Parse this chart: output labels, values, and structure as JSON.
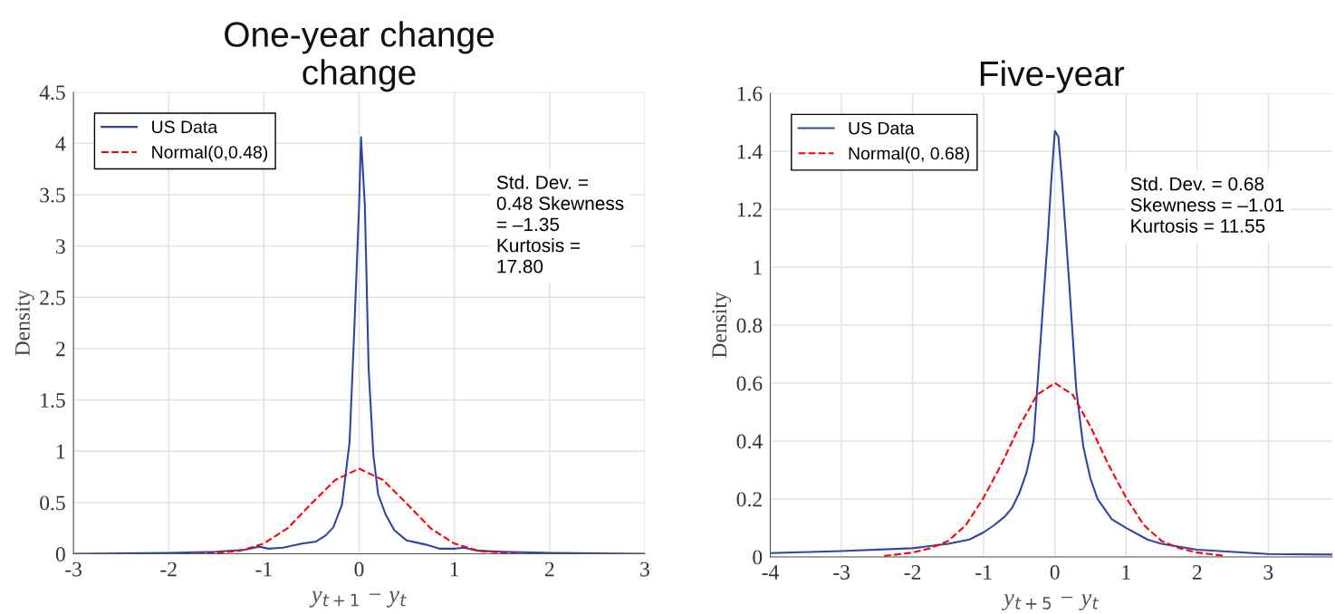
{
  "chart_data": [
    {
      "type": "line",
      "title": "One-year change\nchange",
      "xlabel": "y$_{t+1}$ − y$_{t}$",
      "ylabel": "Density",
      "xlim": [
        -3,
        3
      ],
      "xticks": [
        -3,
        -2,
        -1,
        0,
        1,
        2,
        3
      ],
      "ylim": [
        0,
        4.5
      ],
      "yticks": [
        0,
        0.5,
        1,
        1.5,
        2,
        2.5,
        3,
        3.5,
        4,
        4.5
      ],
      "grid": true,
      "legend": "top left",
      "marker": "none",
      "annotations": [
        "Std. Dev. =\n0.48 Skewness\n= –1.35\nKurtosis =\n17.80"
      ],
      "series": [
        {
          "name": "US Data",
          "color": "#2e45a6",
          "line_style": "solid",
          "x": [
            -3,
            -2,
            -1.5,
            -1.2,
            -1.05,
            -0.95,
            -0.8,
            -0.6,
            -0.45,
            -0.35,
            -0.27,
            -0.18,
            -0.1,
            -0.05,
            0,
            0.02,
            0.06,
            0.1,
            0.15,
            0.2,
            0.28,
            0.37,
            0.5,
            0.7,
            0.85,
            1.0,
            1.1,
            1.25,
            1.5,
            2,
            3
          ],
          "values": [
            0.0,
            0.01,
            0.02,
            0.04,
            0.07,
            0.05,
            0.06,
            0.1,
            0.12,
            0.18,
            0.26,
            0.48,
            1.09,
            2.2,
            3.4,
            4.06,
            3.4,
            1.8,
            0.96,
            0.58,
            0.38,
            0.23,
            0.13,
            0.09,
            0.05,
            0.05,
            0.06,
            0.03,
            0.02,
            0.01,
            0.0
          ]
        },
        {
          "name": "Normal(0,0.48)",
          "color": "#ff0000",
          "line_style": "dashed",
          "x": [
            -1.7,
            -1.5,
            -1.25,
            -1,
            -0.75,
            -0.5,
            -0.25,
            0,
            0.25,
            0.5,
            0.75,
            1,
            1.25,
            1.5,
            1.7
          ],
          "values": [
            0.0,
            0.01,
            0.03,
            0.1,
            0.25,
            0.49,
            0.72,
            0.83,
            0.72,
            0.49,
            0.25,
            0.1,
            0.03,
            0.01,
            0.0
          ]
        }
      ]
    },
    {
      "type": "line",
      "title": "Five-year",
      "xlabel": "y$_{t+5}$ − y$_{t}$",
      "ylabel": "Density",
      "xlim": [
        -4,
        3.9
      ],
      "xticks": [
        -4,
        -3,
        -2,
        -1,
        0,
        1,
        2,
        3
      ],
      "ylim": [
        0,
        1.6
      ],
      "yticks": [
        0,
        0.2,
        0.4,
        0.6,
        0.8,
        1,
        1.2,
        1.4,
        1.6
      ],
      "grid": true,
      "legend": "top left",
      "marker": "none",
      "annotations": [
        "Std. Dev. = 0.68\nSkewness = –1.01\nKurtosis = 11.55"
      ],
      "series": [
        {
          "name": "US Data",
          "color": "#2e45a6",
          "line_style": "solid",
          "x": [
            -4,
            -3,
            -2,
            -1.5,
            -1.2,
            -1,
            -0.85,
            -0.7,
            -0.6,
            -0.5,
            -0.4,
            -0.3,
            -0.2,
            -0.1,
            -0.05,
            0,
            0.05,
            0.1,
            0.2,
            0.3,
            0.4,
            0.5,
            0.6,
            0.8,
            1,
            1.3,
            1.5,
            2,
            3,
            3.9
          ],
          "values": [
            0.013,
            0.02,
            0.03,
            0.045,
            0.06,
            0.085,
            0.11,
            0.14,
            0.17,
            0.22,
            0.29,
            0.4,
            0.75,
            1.1,
            1.3,
            1.47,
            1.45,
            1.3,
            0.95,
            0.58,
            0.38,
            0.27,
            0.2,
            0.13,
            0.1,
            0.06,
            0.045,
            0.025,
            0.01,
            0.008
          ]
        },
        {
          "name": "Normal(0, 0.68)",
          "color": "#ff0000",
          "line_style": "dashed",
          "x": [
            -2.4,
            -2,
            -1.75,
            -1.5,
            -1.25,
            -1,
            -0.75,
            -0.5,
            -0.25,
            0,
            0.25,
            0.5,
            0.75,
            1,
            1.25,
            1.5,
            1.75,
            2,
            2.4
          ],
          "values": [
            0.003,
            0.015,
            0.03,
            0.055,
            0.11,
            0.205,
            0.32,
            0.45,
            0.56,
            0.6,
            0.56,
            0.45,
            0.32,
            0.205,
            0.11,
            0.055,
            0.03,
            0.015,
            0.003
          ]
        }
      ]
    }
  ]
}
